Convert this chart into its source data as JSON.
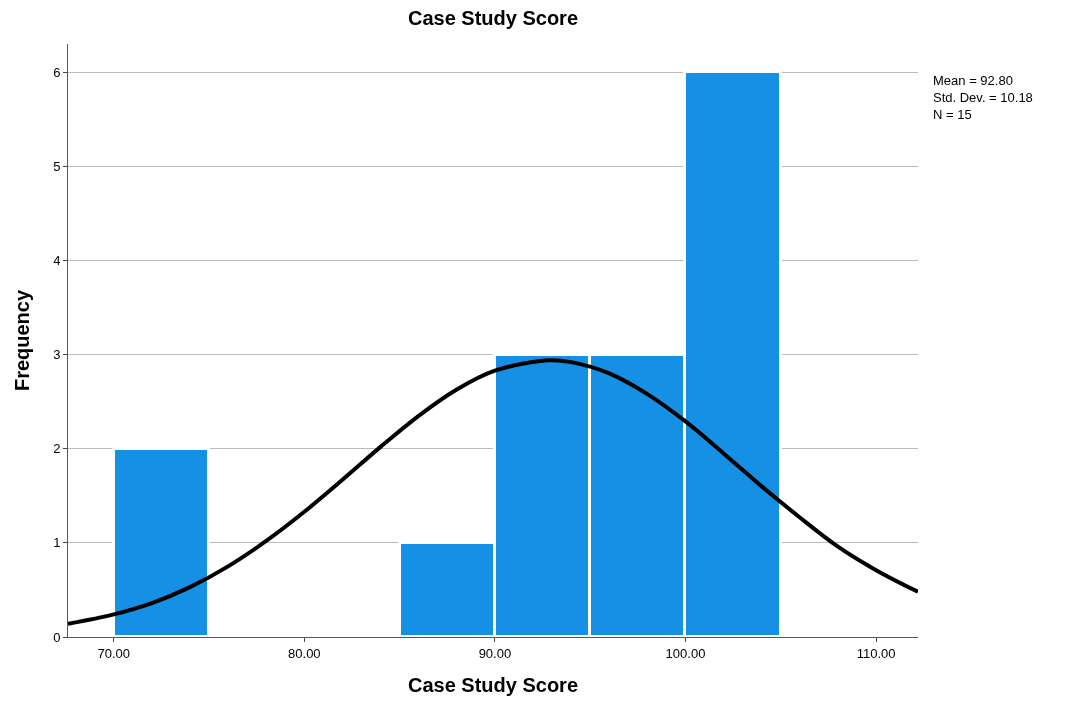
{
  "chart_data": {
    "type": "histogram",
    "title": "Case Study Score",
    "xlabel": "Case Study Score",
    "ylabel": "Frequency",
    "bins": [
      70,
      75,
      80,
      85,
      90,
      95,
      100,
      105
    ],
    "values": [
      2,
      0,
      0,
      1,
      3,
      3,
      6
    ],
    "color": "#1590e4",
    "series": [
      {
        "type": "line",
        "color": "#000000",
        "x": [
          67.6,
          70,
          72,
          74,
          76,
          78,
          80,
          82,
          84,
          86,
          88,
          90,
          92.8,
          94,
          96,
          98,
          100,
          102,
          104,
          106,
          108,
          110,
          112.2
        ],
        "values": [
          0.14,
          0.24,
          0.36,
          0.53,
          0.75,
          1.02,
          1.33,
          1.67,
          2.02,
          2.35,
          2.63,
          2.83,
          2.94,
          2.92,
          2.8,
          2.58,
          2.29,
          1.95,
          1.6,
          1.27,
          0.96,
          0.71,
          0.48
        ]
      }
    ],
    "xlim": [
      67.6,
      112.2
    ],
    "xticks": [
      {
        "value": 70,
        "label": "70.00"
      },
      {
        "value": 80,
        "label": "80.00"
      },
      {
        "value": 90,
        "label": "90.00"
      },
      {
        "value": 100,
        "label": "100.00"
      },
      {
        "value": 110,
        "label": "110.00"
      }
    ],
    "ylim": [
      0,
      6.3
    ],
    "yticks": [
      0,
      1,
      2,
      3,
      4,
      5,
      6
    ],
    "grid": "y",
    "annotations": [
      "Mean = 92.80\nStd. Dev. = 10.18\nN = 15"
    ]
  }
}
